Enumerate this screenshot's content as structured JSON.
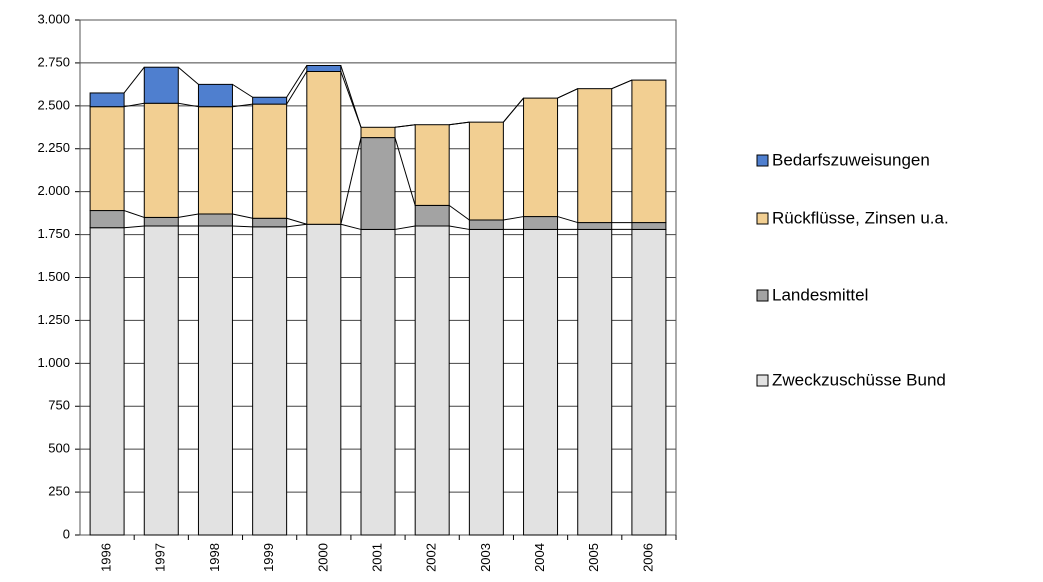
{
  "chart_data": {
    "type": "stacked_bar",
    "categories": [
      "1996",
      "1997",
      "1998",
      "1999",
      "2000",
      "2001",
      "2002",
      "2003",
      "2004",
      "2005",
      "2006"
    ],
    "series": [
      {
        "name": "Zweckzuschüsse Bund",
        "color": "#e2e2e2",
        "values": [
          1790,
          1800,
          1800,
          1795,
          1810,
          1780,
          1800,
          1780,
          1780,
          1780,
          1780
        ]
      },
      {
        "name": "Landesmittel",
        "color": "#a3a3a3",
        "values": [
          100,
          50,
          70,
          50,
          0,
          535,
          120,
          55,
          75,
          40,
          40
        ]
      },
      {
        "name": "Rückflüsse, Zinsen u.a.",
        "color": "#f2cf92",
        "values": [
          605,
          665,
          625,
          665,
          890,
          60,
          470,
          570,
          690,
          780,
          830
        ]
      },
      {
        "name": "Bedarfszuweisungen",
        "color": "#4f7fcf",
        "values": [
          80,
          210,
          130,
          40,
          35,
          0,
          0,
          0,
          0,
          0,
          0
        ]
      }
    ],
    "ylim": [
      0,
      3000
    ],
    "yticks": [
      0,
      250,
      500,
      750,
      {
        "value": 1000,
        "label": "1.000"
      },
      {
        "value": 1250,
        "label": "1.250"
      },
      {
        "value": 1500,
        "label": "1.500"
      },
      {
        "value": 1750,
        "label": "1.750"
      },
      {
        "value": 2000,
        "label": "2.000"
      },
      {
        "value": 2250,
        "label": "2.250"
      },
      {
        "value": 2500,
        "label": "2.500"
      },
      {
        "value": 2750,
        "label": "2.750"
      },
      {
        "value": 3000,
        "label": "3.000"
      }
    ],
    "grid": true
  }
}
